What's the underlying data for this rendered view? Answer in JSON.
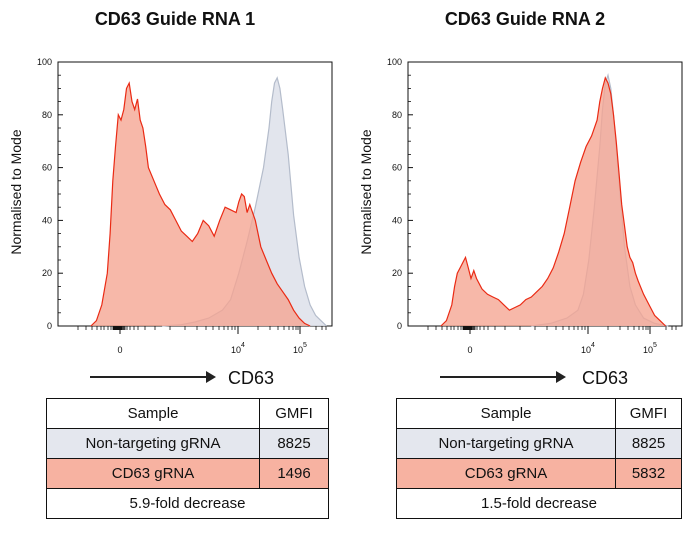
{
  "colors": {
    "control_fill": "#dde1ea",
    "control_line": "#b4bccb",
    "knockout_fill": "#f5a491",
    "knockout_line": "#ea2a14",
    "control_row": "#e4e7ee",
    "knockout_row": "#f7b2a1"
  },
  "chart_data": [
    {
      "type": "area",
      "title": "CD63 Guide RNA 1",
      "ylabel": "Normalised to Mode",
      "xlabel": "CD63",
      "ylim": [
        0,
        100
      ],
      "yticks": [
        "0",
        "20",
        "40",
        "60",
        "80",
        "100"
      ],
      "xticks": [
        {
          "base": "0",
          "exp": ""
        },
        {
          "base": "10",
          "exp": "4"
        },
        {
          "base": "10",
          "exp": "5"
        }
      ],
      "x_scale": "biexponential, arbitrary 0-100 display units",
      "series": [
        {
          "name": "Non-targeting gRNA",
          "points": [
            [
              38,
              0
            ],
            [
              45,
              0.5
            ],
            [
              50,
              1.5
            ],
            [
              55,
              3
            ],
            [
              60,
              6
            ],
            [
              63,
              10
            ],
            [
              66,
              20
            ],
            [
              69,
              32
            ],
            [
              72,
              45
            ],
            [
              75,
              60
            ],
            [
              77,
              75
            ],
            [
              78,
              85
            ],
            [
              79,
              92
            ],
            [
              80,
              94
            ],
            [
              81,
              90
            ],
            [
              82,
              82
            ],
            [
              84,
              65
            ],
            [
              86,
              42
            ],
            [
              88,
              26
            ],
            [
              90,
              15
            ],
            [
              92,
              8
            ],
            [
              94,
              4
            ],
            [
              96,
              2
            ],
            [
              98,
              0
            ]
          ]
        },
        {
          "name": "CD63 gRNA",
          "points": [
            [
              12,
              0
            ],
            [
              14,
              2
            ],
            [
              16,
              8
            ],
            [
              18,
              20
            ],
            [
              19,
              35
            ],
            [
              20,
              55
            ],
            [
              21,
              68
            ],
            [
              22,
              80
            ],
            [
              23,
              78
            ],
            [
              24,
              82
            ],
            [
              25,
              90
            ],
            [
              26,
              92
            ],
            [
              27,
              85
            ],
            [
              28,
              82
            ],
            [
              29,
              86
            ],
            [
              30,
              78
            ],
            [
              31,
              75
            ],
            [
              32,
              68
            ],
            [
              33,
              60
            ],
            [
              35,
              55
            ],
            [
              37,
              50
            ],
            [
              39,
              46
            ],
            [
              41,
              44
            ],
            [
              43,
              40
            ],
            [
              45,
              36
            ],
            [
              47,
              34
            ],
            [
              49,
              32
            ],
            [
              51,
              35
            ],
            [
              53,
              40
            ],
            [
              55,
              38
            ],
            [
              57,
              34
            ],
            [
              59,
              40
            ],
            [
              61,
              45
            ],
            [
              63,
              44
            ],
            [
              65,
              43
            ],
            [
              66,
              47
            ],
            [
              67,
              50
            ],
            [
              68,
              49
            ],
            [
              69,
              43
            ],
            [
              70,
              46
            ],
            [
              72,
              40
            ],
            [
              74,
              30
            ],
            [
              76,
              25
            ],
            [
              78,
              20
            ],
            [
              80,
              16
            ],
            [
              82,
              13
            ],
            [
              84,
              10
            ],
            [
              86,
              6
            ],
            [
              88,
              3
            ],
            [
              90,
              1
            ],
            [
              92,
              0
            ]
          ]
        }
      ]
    },
    {
      "type": "area",
      "title": "CD63 Guide RNA 2",
      "ylabel": "Normalised to Mode",
      "xlabel": "CD63",
      "ylim": [
        0,
        100
      ],
      "yticks": [
        "0",
        "20",
        "40",
        "60",
        "80",
        "100"
      ],
      "xticks": [
        {
          "base": "0",
          "exp": ""
        },
        {
          "base": "10",
          "exp": "4"
        },
        {
          "base": "10",
          "exp": "5"
        }
      ],
      "x_scale": "biexponential, arbitrary 0-100 display units",
      "series": [
        {
          "name": "Non-targeting gRNA",
          "points": [
            [
              45,
              0
            ],
            [
              52,
              1
            ],
            [
              58,
              3
            ],
            [
              62,
              6
            ],
            [
              64,
              12
            ],
            [
              66,
              25
            ],
            [
              68,
              45
            ],
            [
              70,
              68
            ],
            [
              71,
              82
            ],
            [
              72,
              92
            ],
            [
              73,
              95
            ],
            [
              74,
              90
            ],
            [
              75,
              80
            ],
            [
              77,
              55
            ],
            [
              79,
              30
            ],
            [
              81,
              15
            ],
            [
              83,
              8
            ],
            [
              86,
              3
            ],
            [
              90,
              1
            ],
            [
              95,
              0
            ]
          ]
        },
        {
          "name": "CD63 gRNA",
          "points": [
            [
              12,
              0
            ],
            [
              14,
              2
            ],
            [
              16,
              8
            ],
            [
              17,
              15
            ],
            [
              18,
              20
            ],
            [
              19,
              22
            ],
            [
              20,
              24
            ],
            [
              21,
              26
            ],
            [
              22,
              22
            ],
            [
              23,
              18
            ],
            [
              24,
              21
            ],
            [
              25,
              18
            ],
            [
              27,
              14
            ],
            [
              29,
              12
            ],
            [
              31,
              11
            ],
            [
              33,
              10
            ],
            [
              35,
              8
            ],
            [
              37,
              6
            ],
            [
              39,
              7
            ],
            [
              41,
              8
            ],
            [
              43,
              10
            ],
            [
              45,
              11
            ],
            [
              47,
              13
            ],
            [
              49,
              15
            ],
            [
              51,
              18
            ],
            [
              53,
              22
            ],
            [
              55,
              28
            ],
            [
              57,
              35
            ],
            [
              59,
              45
            ],
            [
              61,
              55
            ],
            [
              63,
              62
            ],
            [
              65,
              68
            ],
            [
              67,
              72
            ],
            [
              69,
              78
            ],
            [
              70,
              85
            ],
            [
              71,
              90
            ],
            [
              72,
              94
            ],
            [
              73,
              92
            ],
            [
              74,
              88
            ],
            [
              75,
              80
            ],
            [
              76,
              70
            ],
            [
              77,
              58
            ],
            [
              78,
              46
            ],
            [
              79,
              38
            ],
            [
              80,
              30
            ],
            [
              81,
              26
            ],
            [
              82,
              24
            ],
            [
              83,
              20
            ],
            [
              84,
              17
            ],
            [
              86,
              12
            ],
            [
              88,
              8
            ],
            [
              90,
              4
            ],
            [
              92,
              2
            ],
            [
              94,
              0
            ]
          ]
        }
      ]
    }
  ],
  "tables": [
    {
      "header": [
        "Sample",
        "GMFI"
      ],
      "rows": [
        {
          "sample": "Non-targeting gRNA",
          "gmfi": "8825"
        },
        {
          "sample": "CD63 gRNA",
          "gmfi": "1496"
        }
      ],
      "footer": "5.9-fold decrease"
    },
    {
      "header": [
        "Sample",
        "GMFI"
      ],
      "rows": [
        {
          "sample": "Non-targeting gRNA",
          "gmfi": "8825"
        },
        {
          "sample": "CD63 gRNA",
          "gmfi": "5832"
        }
      ],
      "footer": "1.5-fold decrease"
    }
  ]
}
